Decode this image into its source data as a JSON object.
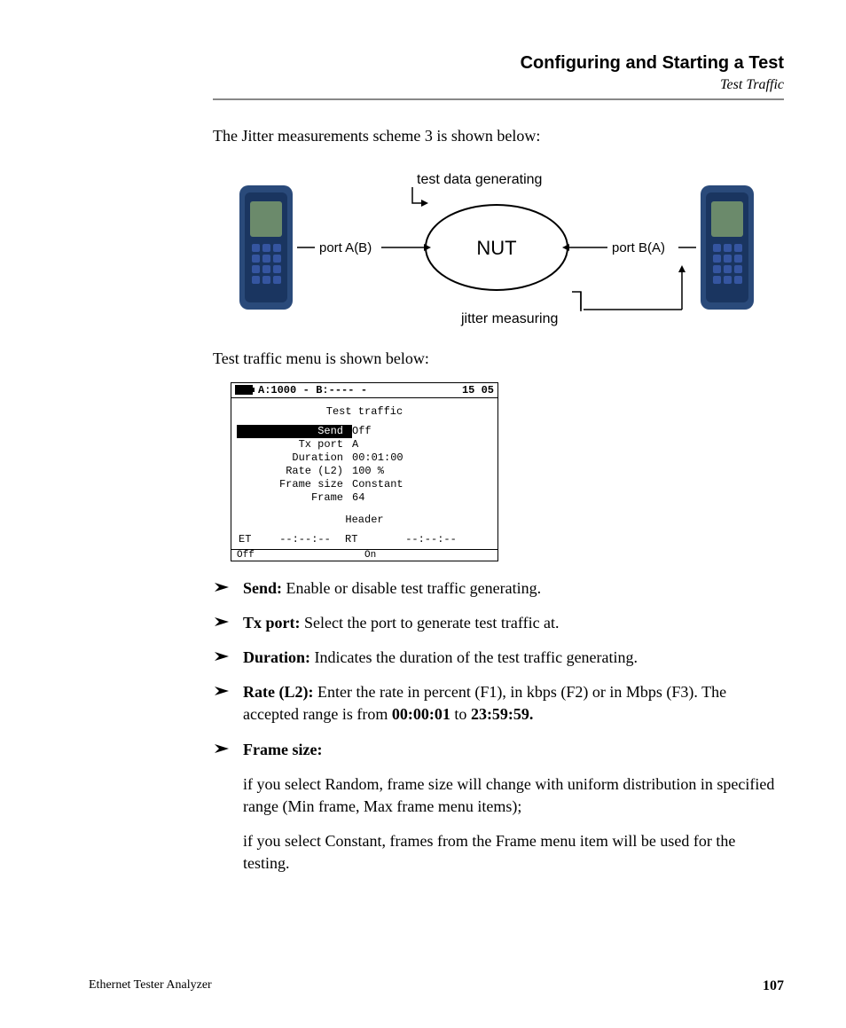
{
  "header": {
    "title": "Configuring and Starting a Test",
    "subtitle": "Test Traffic"
  },
  "intro1": "The Jitter measurements scheme 3 is shown below:",
  "diagram": {
    "top_label": "test data generating",
    "left_port": "port A(B)",
    "center": "NUT",
    "right_port": "port B(A)",
    "bottom_label": "jitter measuring"
  },
  "intro2": "Test traffic menu is shown below:",
  "menu": {
    "status_left": "A:1000",
    "status_dash": "-",
    "status_mid": "B:----",
    "status_dash2": "-",
    "status_right": "15 05",
    "title": "Test traffic",
    "rows": [
      {
        "label": "Send",
        "value": "Off",
        "selected": true
      },
      {
        "label": "Tx port",
        "value": "A"
      },
      {
        "label": "Duration",
        "value": "00:01:00"
      },
      {
        "label": "Rate (L2)",
        "value": "100     %"
      },
      {
        "label": "Frame size",
        "value": "Constant"
      },
      {
        "label": "Frame",
        "value": "64"
      }
    ],
    "header_row": "Header",
    "et_label": "ET",
    "et_val": "--:--:--",
    "rt_label": "RT",
    "rt_val": "--:--:--",
    "foot_left": "Off",
    "foot_right": "On"
  },
  "definitions": [
    {
      "term": "Send:",
      "desc": " Enable or disable test traffic generating."
    },
    {
      "term": "Tx port:",
      "desc": " Select the port to generate test traffic at."
    },
    {
      "term": "Duration:",
      "desc": " Indicates the duration of the test traffic generating."
    },
    {
      "term": "Rate (L2):",
      "desc_pre": " Enter the rate in percent (F1), in kbps (F2) or in Mbps (F3). The accepted range is from ",
      "b1": "00:00:01",
      "mid": " to ",
      "b2": "23:59:59."
    },
    {
      "term": "Frame size:",
      "desc": ""
    }
  ],
  "frame_sub": [
    "if you select Random, frame size will change with uniform distribution in specified range (Min frame, Max frame menu items);",
    "if you select Constant, frames from the Frame menu item will be used for the testing."
  ],
  "footer": {
    "left": "Ethernet Tester Analyzer",
    "page": "107"
  },
  "colors": {
    "device_body": "#2a4a7a",
    "device_accent": "#1a3560",
    "device_screen": "#6b8a6b",
    "device_keypad": "#3555a0"
  }
}
